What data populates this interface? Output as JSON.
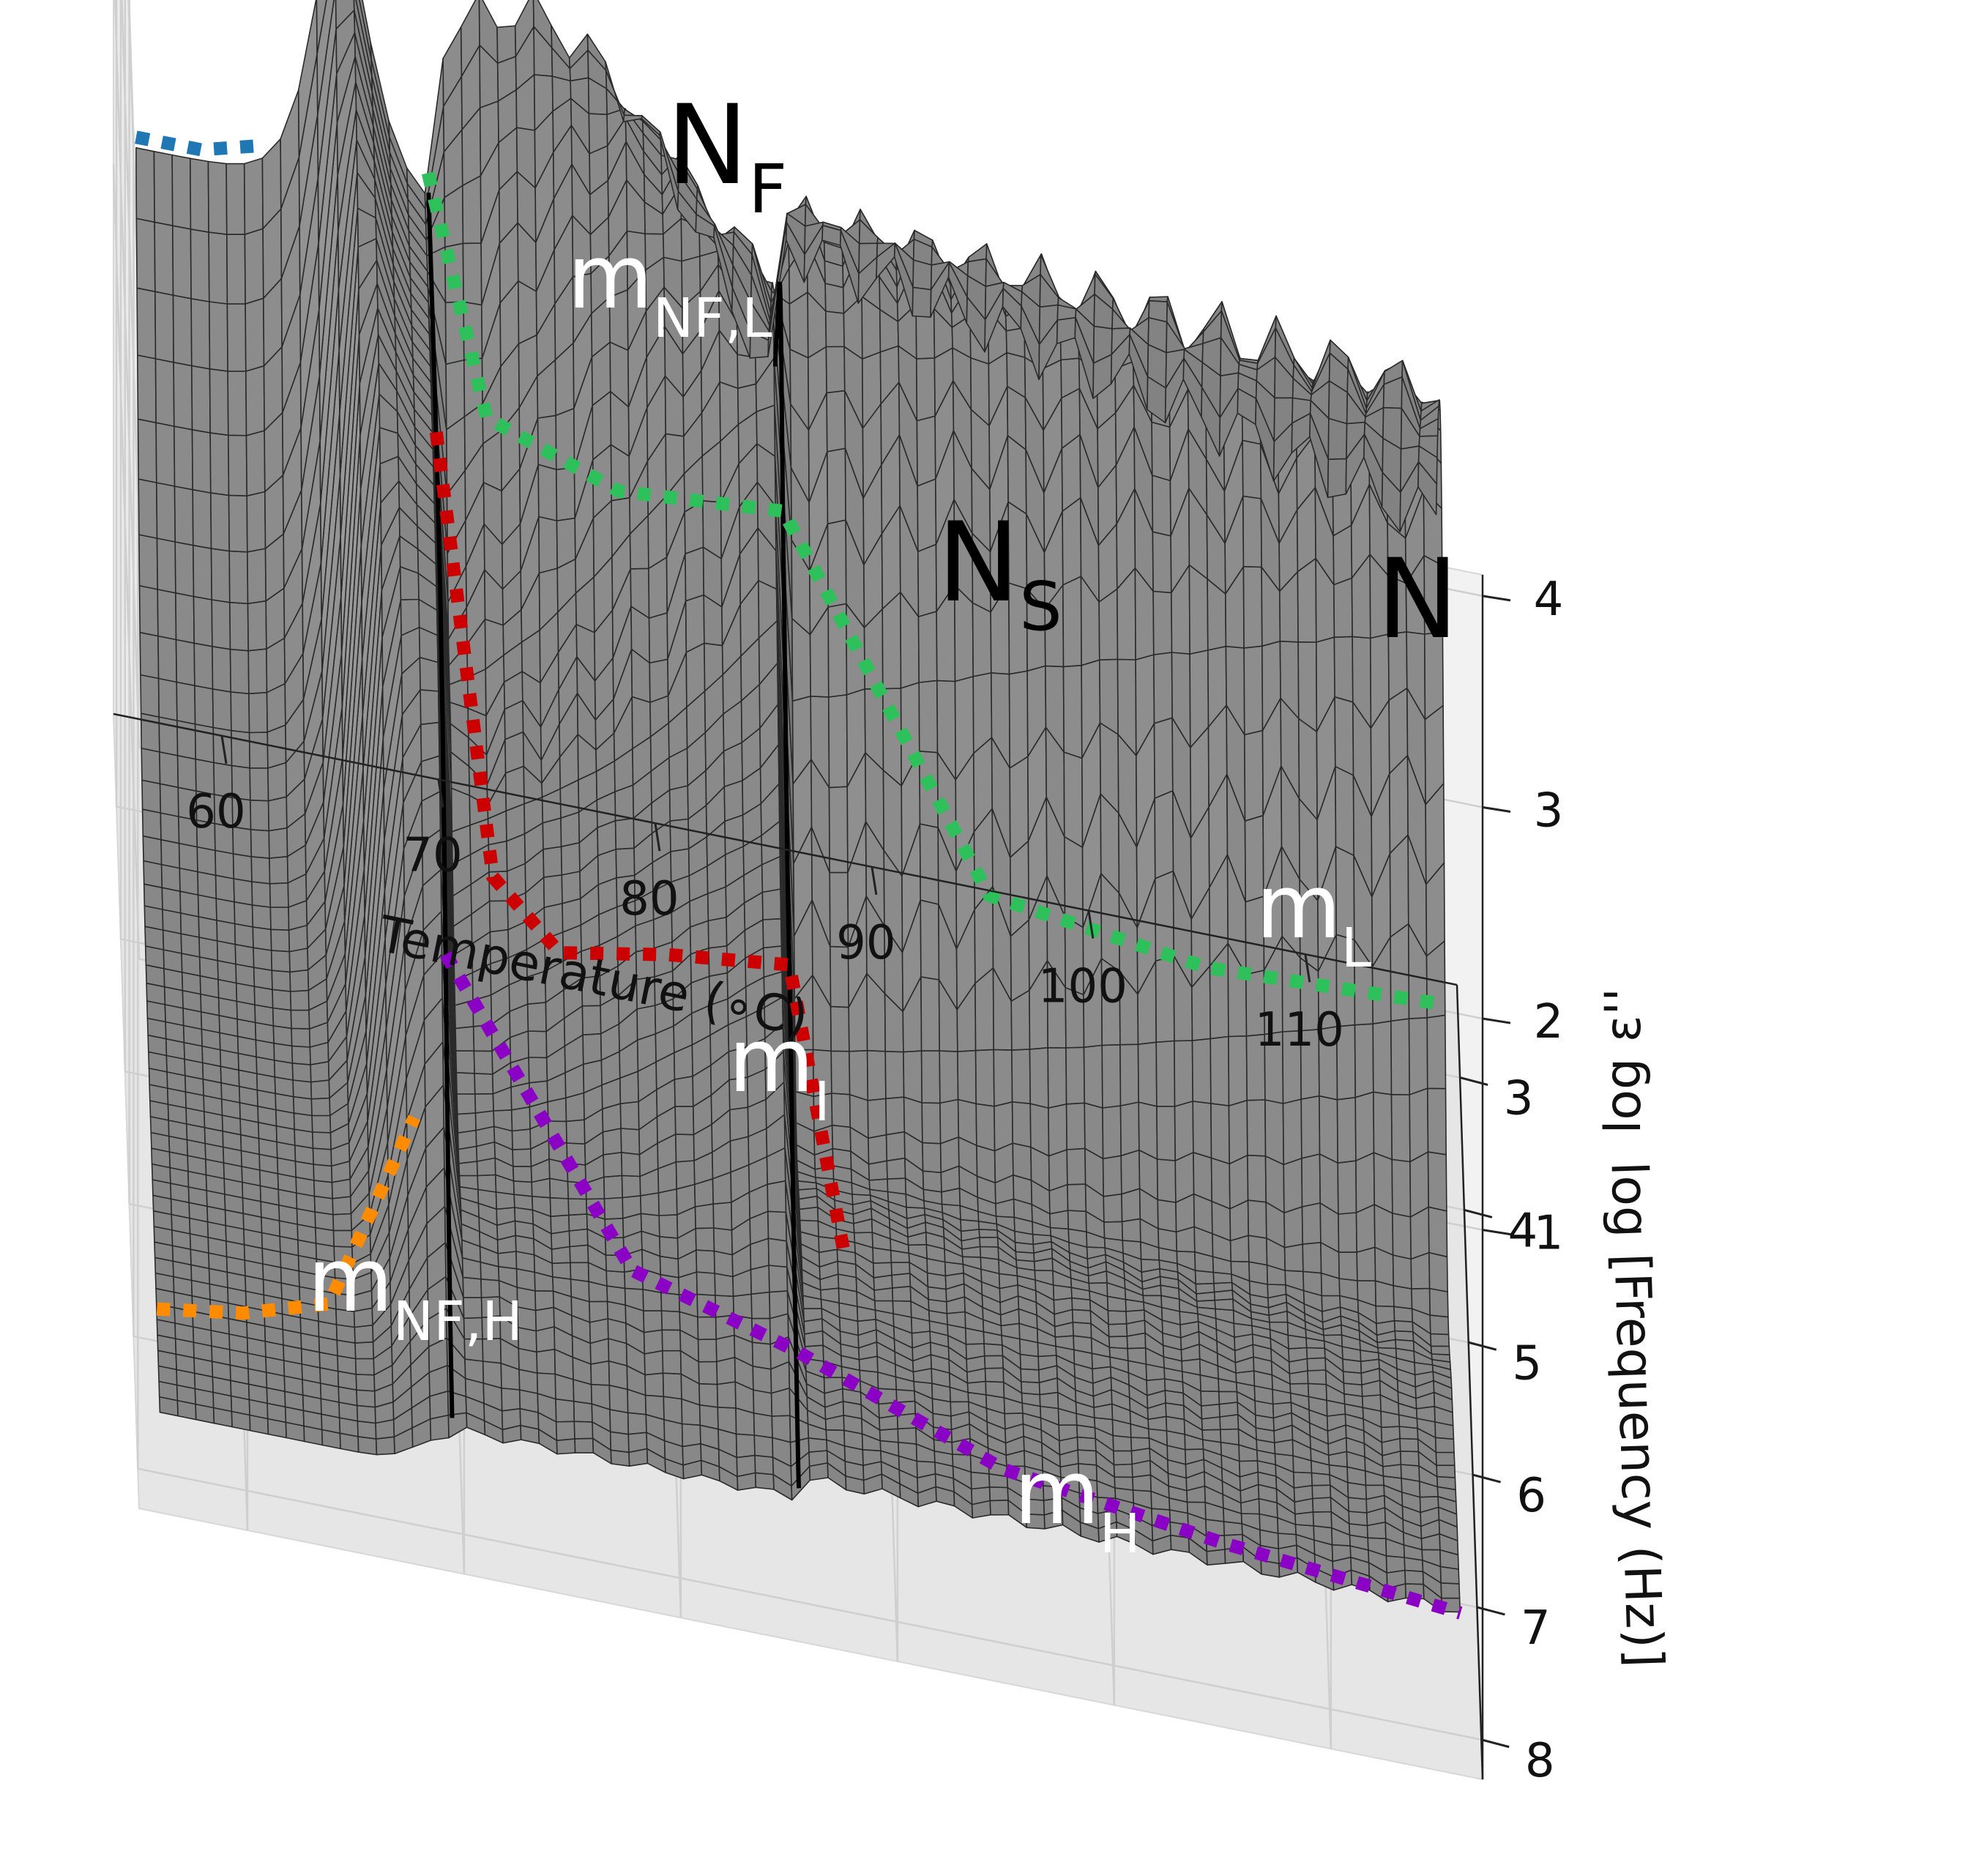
{
  "chart_data": {
    "type": "surface3d",
    "title": "",
    "xlabel": "Temperature ($^\\circ C$)",
    "ylabel": "log [Frequency (Hz)]",
    "zlabel": "log ε''",
    "xlim": [
      55,
      117
    ],
    "ylim": [
      2.3,
      8.3
    ],
    "zlim": [
      -1.6,
      4.1
    ],
    "xticks": [
      60,
      70,
      80,
      90,
      100,
      110
    ],
    "yticks": [
      3,
      4,
      5,
      6,
      7,
      8
    ],
    "zticks": [
      1,
      2,
      3,
      4
    ],
    "xtick_labels": [
      "60",
      "70",
      "80",
      "90",
      "100",
      "110"
    ],
    "ytick_labels": [
      "3",
      "4",
      "5",
      "6",
      "7",
      "8"
    ],
    "ztick_labels": [
      "1",
      "2",
      "3",
      "4"
    ],
    "phase_transitions_celsius": [
      69.5,
      85.5
    ],
    "phases": [
      {
        "main": "N",
        "sub": "F",
        "t_center": 65
      },
      {
        "main": "N",
        "sub": "S",
        "t_center": 78
      },
      {
        "main": "N",
        "sub": "",
        "t_center": 100
      }
    ],
    "modes": [
      {
        "main": "m",
        "sub": "NF,L",
        "color": "#1f77b4",
        "points": [
          {
            "t": 56,
            "logf": 2.5
          },
          {
            "t": 59,
            "logf": 2.5
          },
          {
            "t": 62,
            "logf": 2.5
          }
        ]
      },
      {
        "main": "m",
        "sub": "NF,H",
        "color": "#ff8c00",
        "points": [
          {
            "t": 56,
            "logf": 7.4
          },
          {
            "t": 60,
            "logf": 7.3
          },
          {
            "t": 64,
            "logf": 7.1
          },
          {
            "t": 68,
            "logf": 6.8
          }
        ]
      },
      {
        "main": "m",
        "sub": "I",
        "color": "#cc0000",
        "points": [
          {
            "t": 69.5,
            "logf": 4.3
          },
          {
            "t": 72,
            "logf": 4.9
          },
          {
            "t": 75,
            "logf": 5.3
          },
          {
            "t": 80,
            "logf": 5.5
          },
          {
            "t": 85.5,
            "logf": 5.8
          },
          {
            "t": 88,
            "logf": 6.2
          }
        ]
      },
      {
        "main": "m",
        "sub": "L",
        "color": "#2ec05a",
        "points": [
          {
            "t": 69.5,
            "logf": 2.4
          },
          {
            "t": 72,
            "logf": 3.4
          },
          {
            "t": 78,
            "logf": 3.9
          },
          {
            "t": 85.5,
            "logf": 4.3
          },
          {
            "t": 95,
            "logf": 4.4
          },
          {
            "t": 105,
            "logf": 4.5
          },
          {
            "t": 116,
            "logf": 4.6
          }
        ]
      },
      {
        "main": "m",
        "sub": "H",
        "color": "#8a00c4",
        "points": [
          {
            "t": 69.5,
            "logf": 6.5
          },
          {
            "t": 78,
            "logf": 7.0
          },
          {
            "t": 85.5,
            "logf": 7.4
          },
          {
            "t": 95,
            "logf": 7.8
          },
          {
            "t": 105,
            "logf": 8.0
          },
          {
            "t": 116,
            "logf": 8.2
          }
        ]
      }
    ],
    "surface_color": "#9a9a9a",
    "grid": true
  }
}
